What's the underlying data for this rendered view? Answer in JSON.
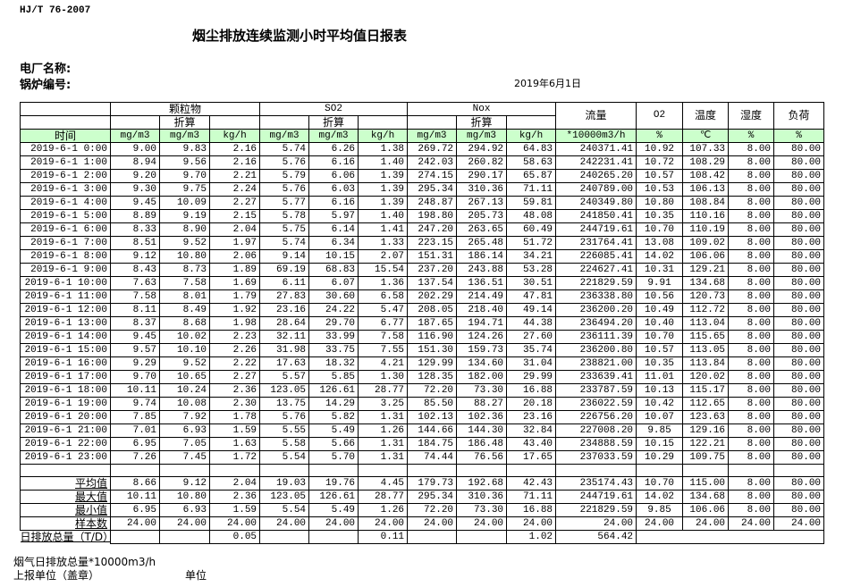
{
  "standard": "HJ/T  76-2007",
  "title": "烟尘排放连续监测小时平均值日报表",
  "plant_label": "电厂名称:",
  "boiler_label": "锅炉编号:",
  "date": "2019年6月1日",
  "header": {
    "particulate": "颗粒物",
    "so2": "SO2",
    "nox": "Nox",
    "converted": "折算",
    "flow": "流量",
    "o2": "O2",
    "temperature": "温度",
    "humidity": "湿度",
    "load": "负荷",
    "time": "时间",
    "units": [
      "mg/m3",
      "mg/m3",
      "kg/h",
      "mg/m3",
      "mg/m3",
      "kg/h",
      "mg/m3",
      "mg/m3",
      "kg/h",
      "*10000m3/h",
      "%",
      "℃",
      "%",
      "%"
    ]
  },
  "rows": [
    [
      "2019-6-1 0:00",
      "9.00",
      "9.83",
      "2.16",
      "5.74",
      "6.26",
      "1.38",
      "269.72",
      "294.92",
      "64.83",
      "240371.41",
      "10.92",
      "107.33",
      "8.00",
      "80.00"
    ],
    [
      "2019-6-1 1:00",
      "8.94",
      "9.56",
      "2.16",
      "5.76",
      "6.16",
      "1.40",
      "242.03",
      "260.82",
      "58.63",
      "242231.41",
      "10.72",
      "108.29",
      "8.00",
      "80.00"
    ],
    [
      "2019-6-1 2:00",
      "9.20",
      "9.70",
      "2.21",
      "5.79",
      "6.06",
      "1.39",
      "274.15",
      "290.17",
      "65.87",
      "240265.20",
      "10.57",
      "108.42",
      "8.00",
      "80.00"
    ],
    [
      "2019-6-1 3:00",
      "9.30",
      "9.75",
      "2.24",
      "5.76",
      "6.03",
      "1.39",
      "295.34",
      "310.36",
      "71.11",
      "240789.00",
      "10.53",
      "106.13",
      "8.00",
      "80.00"
    ],
    [
      "2019-6-1 4:00",
      "9.45",
      "10.09",
      "2.27",
      "5.77",
      "6.16",
      "1.39",
      "248.87",
      "267.13",
      "59.81",
      "240349.80",
      "10.80",
      "108.84",
      "8.00",
      "80.00"
    ],
    [
      "2019-6-1 5:00",
      "8.89",
      "9.19",
      "2.15",
      "5.78",
      "5.97",
      "1.40",
      "198.80",
      "205.73",
      "48.08",
      "241850.41",
      "10.35",
      "110.16",
      "8.00",
      "80.00"
    ],
    [
      "2019-6-1 6:00",
      "8.33",
      "8.90",
      "2.04",
      "5.75",
      "6.14",
      "1.41",
      "247.20",
      "263.65",
      "60.49",
      "244719.61",
      "10.70",
      "110.19",
      "8.00",
      "80.00"
    ],
    [
      "2019-6-1 7:00",
      "8.51",
      "9.52",
      "1.97",
      "5.74",
      "6.34",
      "1.33",
      "223.15",
      "265.48",
      "51.72",
      "231764.41",
      "13.08",
      "109.02",
      "8.00",
      "80.00"
    ],
    [
      "2019-6-1 8:00",
      "9.12",
      "10.80",
      "2.06",
      "9.14",
      "10.15",
      "2.07",
      "151.31",
      "186.14",
      "34.21",
      "226085.41",
      "14.02",
      "106.06",
      "8.00",
      "80.00"
    ],
    [
      "2019-6-1 9:00",
      "8.43",
      "8.73",
      "1.89",
      "69.19",
      "68.83",
      "15.54",
      "237.20",
      "243.88",
      "53.28",
      "224627.41",
      "10.31",
      "129.21",
      "8.00",
      "80.00"
    ],
    [
      "2019-6-1 10:00",
      "7.63",
      "7.58",
      "1.69",
      "6.11",
      "6.07",
      "1.36",
      "137.54",
      "136.51",
      "30.51",
      "221829.59",
      "9.91",
      "134.68",
      "8.00",
      "80.00"
    ],
    [
      "2019-6-1 11:00",
      "7.58",
      "8.01",
      "1.79",
      "27.83",
      "30.60",
      "6.58",
      "202.29",
      "214.49",
      "47.81",
      "236338.80",
      "10.56",
      "120.73",
      "8.00",
      "80.00"
    ],
    [
      "2019-6-1 12:00",
      "8.11",
      "8.49",
      "1.92",
      "23.16",
      "24.22",
      "5.47",
      "208.05",
      "218.40",
      "49.14",
      "236200.20",
      "10.49",
      "112.72",
      "8.00",
      "80.00"
    ],
    [
      "2019-6-1 13:00",
      "8.37",
      "8.68",
      "1.98",
      "28.64",
      "29.70",
      "6.77",
      "187.65",
      "194.71",
      "44.38",
      "236494.20",
      "10.40",
      "113.04",
      "8.00",
      "80.00"
    ],
    [
      "2019-6-1 14:00",
      "9.45",
      "10.02",
      "2.23",
      "32.11",
      "33.99",
      "7.58",
      "116.90",
      "124.26",
      "27.60",
      "236111.39",
      "10.70",
      "115.65",
      "8.00",
      "80.00"
    ],
    [
      "2019-6-1 15:00",
      "9.57",
      "10.10",
      "2.26",
      "31.98",
      "33.75",
      "7.55",
      "151.30",
      "159.73",
      "35.74",
      "236200.80",
      "10.57",
      "113.05",
      "8.00",
      "80.00"
    ],
    [
      "2019-6-1 16:00",
      "9.29",
      "9.52",
      "2.22",
      "17.63",
      "18.32",
      "4.21",
      "129.99",
      "134.60",
      "31.04",
      "238821.00",
      "10.35",
      "113.84",
      "8.00",
      "80.00"
    ],
    [
      "2019-6-1 17:00",
      "9.70",
      "10.65",
      "2.27",
      "5.57",
      "5.85",
      "1.30",
      "128.35",
      "182.00",
      "29.99",
      "233639.41",
      "11.01",
      "120.02",
      "8.00",
      "80.00"
    ],
    [
      "2019-6-1 18:00",
      "10.11",
      "10.24",
      "2.36",
      "123.05",
      "126.61",
      "28.77",
      "72.20",
      "73.30",
      "16.88",
      "233787.59",
      "10.13",
      "115.17",
      "8.00",
      "80.00"
    ],
    [
      "2019-6-1 19:00",
      "9.74",
      "10.08",
      "2.30",
      "13.75",
      "14.29",
      "3.25",
      "85.50",
      "88.27",
      "20.18",
      "236022.59",
      "10.42",
      "112.65",
      "8.00",
      "80.00"
    ],
    [
      "2019-6-1 20:00",
      "7.85",
      "7.92",
      "1.78",
      "5.76",
      "5.82",
      "1.31",
      "102.13",
      "102.36",
      "23.16",
      "226756.20",
      "10.07",
      "123.63",
      "8.00",
      "80.00"
    ],
    [
      "2019-6-1 21:00",
      "7.01",
      "6.93",
      "1.59",
      "5.55",
      "5.49",
      "1.26",
      "144.66",
      "144.30",
      "32.84",
      "227008.20",
      "9.85",
      "129.16",
      "8.00",
      "80.00"
    ],
    [
      "2019-6-1 22:00",
      "6.95",
      "7.05",
      "1.63",
      "5.58",
      "5.66",
      "1.31",
      "184.75",
      "186.48",
      "43.40",
      "234888.59",
      "10.15",
      "122.21",
      "8.00",
      "80.00"
    ],
    [
      "2019-6-1 23:00",
      "7.26",
      "7.45",
      "1.72",
      "5.54",
      "5.70",
      "1.31",
      "74.44",
      "76.56",
      "17.65",
      "237033.59",
      "10.29",
      "109.75",
      "8.00",
      "80.00"
    ]
  ],
  "summary": [
    [
      "平均值",
      "8.66",
      "9.12",
      "2.04",
      "19.03",
      "19.76",
      "4.45",
      "179.73",
      "192.68",
      "42.43",
      "235174.43",
      "10.70",
      "115.00",
      "8.00",
      "80.00"
    ],
    [
      "最大值",
      "10.11",
      "10.80",
      "2.36",
      "123.05",
      "126.61",
      "28.77",
      "295.34",
      "310.36",
      "71.11",
      "244719.61",
      "14.02",
      "134.68",
      "8.00",
      "80.00"
    ],
    [
      "最小值",
      "6.95",
      "6.93",
      "1.59",
      "5.54",
      "5.49",
      "1.26",
      "72.20",
      "73.30",
      "16.88",
      "221829.59",
      "9.85",
      "106.06",
      "8.00",
      "80.00"
    ],
    [
      "样本数",
      "24.00",
      "24.00",
      "24.00",
      "24.00",
      "24.00",
      "24.00",
      "24.00",
      "24.00",
      "24.00",
      "24.00",
      "24.00",
      "24.00",
      "24.00",
      "24.00"
    ]
  ],
  "daily_total": {
    "label": "日排放总量（T/D）",
    "particulate_kgh": "0.05",
    "so2_kgh": "0.11",
    "nox_kgh": "1.02",
    "flow": "564.42"
  },
  "footer": {
    "flue_gas_total": "烟气日排放总量*10000m3/h",
    "reporting_unit": "上报单位（盖章）",
    "unit": "单位"
  }
}
